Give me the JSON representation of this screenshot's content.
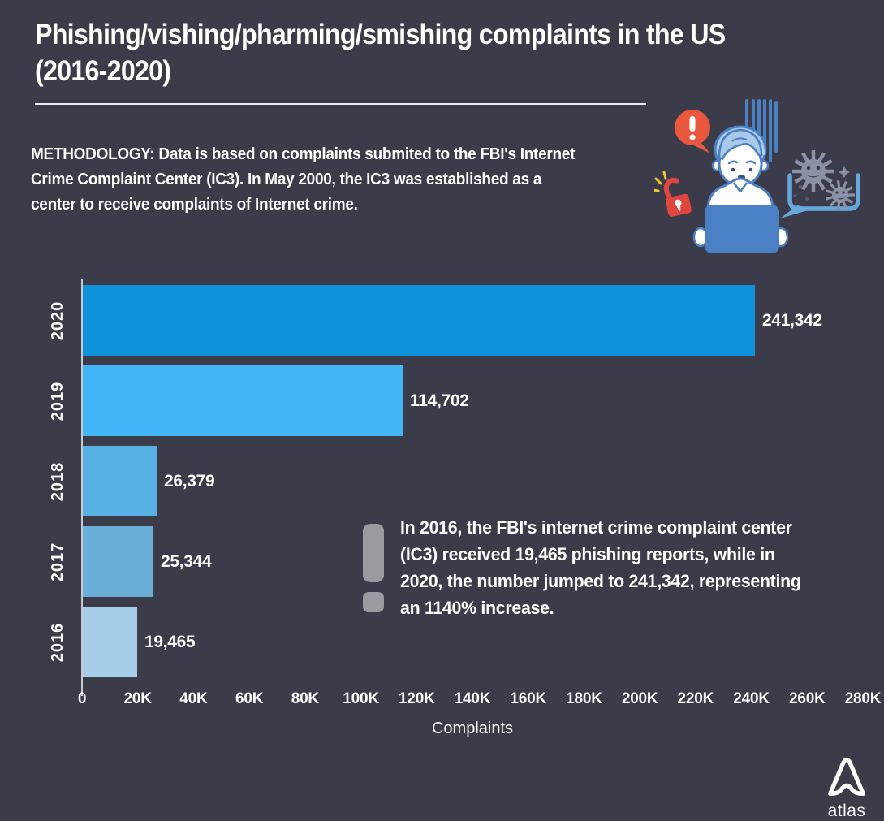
{
  "page": {
    "background": "#3b3b4a",
    "text_color": "#ffffff"
  },
  "header": {
    "title_lines": [
      "Phishing/vishing/pharming/smishing complaints in the US",
      "(2016-2020)"
    ],
    "title_full": "Phishing/vishing/pharming/smishing complaints in the US (2016-2020)"
  },
  "methodology": {
    "lines": [
      "METHODOLOGY: Data is based on complaints submited to the FBI's Internet",
      "Crime Complaint Center (IC3). In May 2000, the IC3 was established as a",
      "center to receive complaints of Internet crime."
    ]
  },
  "chart_data": {
    "type": "bar",
    "orientation": "horizontal",
    "title": "Phishing/vishing/pharming/smishing complaints in the US (2016-2020)",
    "categories": [
      "2020",
      "2019",
      "2018",
      "2017",
      "2016"
    ],
    "values": [
      241342,
      114702,
      26379,
      25344,
      19465
    ],
    "value_labels": [
      "241,342",
      "114,702",
      "26,379",
      "25,344",
      "19,465"
    ],
    "bar_colors": [
      "#0e93da",
      "#41b5f5",
      "#58b1e4",
      "#68aed6",
      "#a6cee8"
    ],
    "xlabel": "Complaints",
    "ylabel": "",
    "x_ticks": [
      "0",
      "20K",
      "40K",
      "60K",
      "80K",
      "100K",
      "120K",
      "140K",
      "160K",
      "180K",
      "200K",
      "220K",
      "240K",
      "260K",
      "280K"
    ],
    "xlim": [
      0,
      280000
    ],
    "grid": false,
    "legend": "none",
    "axis_color": "#c9c9d2"
  },
  "annotation": {
    "icon": "exclamation-icon",
    "icon_color": "#9a9aa0",
    "lines": [
      "In 2016, the FBI's internet crime complaint center",
      "(IC3) received 19,465 phishing reports, while in",
      "2020, the number jumped to 241,342, representing",
      "an 1140% increase."
    ]
  },
  "illustration": {
    "icons": [
      "alert-bubble-icon",
      "stress-lines-icon",
      "worried-person-icon",
      "laptop-icon",
      "open-padlock-icon",
      "virus-speech-bubble-icon"
    ],
    "alert_color": "#e9573e",
    "person_line_color": "#4b80c3",
    "laptop_color": "#4a80c4",
    "padlock_color": "#e0453e",
    "spark_color": "#edc52e",
    "bubble_color": "#67a7dc",
    "virus_color": "#8b92a6"
  },
  "footer": {
    "logo_text": "atlas"
  }
}
